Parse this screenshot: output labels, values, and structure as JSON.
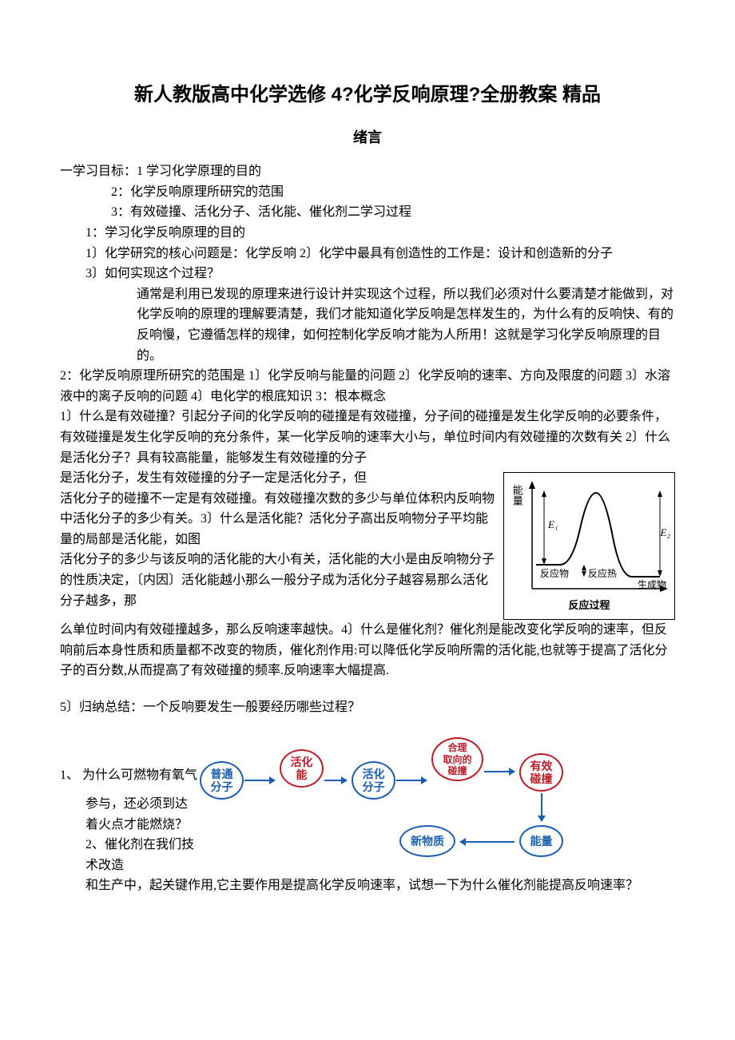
{
  "title": "新人教版高中化学选修 4?化学反响原理?全册教案    精品",
  "subtitle": "绪言",
  "intro": {
    "l1": "一学习目标：1 学习化学原理的目的",
    "l2": "2：化学反响原理所研究的范围",
    "l3": "3：有效碰撞、活化分子、活化能、催化剂二学习过程",
    "l4": "1：学习化学反响原理的目的",
    "l5": "1〕化学研究的核心问题是：化学反响 2〕化学中最具有创造性的工作是：设计和创造新的分子",
    "l6": "3〕如何实现这个过程？",
    "l7": "通常是利用已发现的原理来进行设计并实现这个过程，所以我们必须对什么要清楚才能做到，对化学反响的原理的理解要清楚，我们才能知道化学反响是怎样发生的，为什么有的反响快、有的反响慢，它遵循怎样的规律，如何控制化学反响才能为人所用！这就是学习化学反响原理的目的。"
  },
  "section2": {
    "l1": "2：化学反响原理所研究的范围是 1〕化学反响与能量的问题 2〕化学反响的速率、方向及限度的问题 3〕水溶液中的离子反响的问题 4〕电化学的根底知识 3：根本概念",
    "l2": "1〕什么是有效碰撞？引起分子间的化学反响的碰撞是有效碰撞，分子间的碰撞是发生化学反响的必要条件，有效碰撞是发生化学反响的充分条件，某一化学反响的速率大小与，单位时间内有效碰撞的次数有关 2〕什么是活化分子？具有较高能量，能够发生有效碰撞的分子",
    "l3a": "是活化分子，发生有效碰撞的分子一定是活化分子，但",
    "l3b": "活化分子的碰撞不一定是有效碰撞。有效碰撞次数的多少与单位体积内反响物中活化分子的多少有关。3〕什么是活化能？活化分子高出反响物分子平均能量的局部是活化能，如图",
    "l3c": "活化分子的多少与该反响的活化能的大小有关，活化能的大小是由反响物分子的性质决定，〔内因〕活化能越小那么一般分子成为活化分子越容易那么活化分子越多，那",
    "l4": "么单位时间内有效碰撞越多，那么反响速率越快。4〕什么是催化剂？催化剂是能改变化学反响的速率，但反响前后本身性质和质量都不改变的物质，催化剂作用:可以降低化学反响所需的活化能,也就等于提高了活化分子的百分数,从而提高了有效碰撞的频率.反响速率大幅提高."
  },
  "section5": "5〕归纳总结：一个反响要发生一般要经历哪些过程？",
  "q1": {
    "l1": "1、 为什么可燃物有氧气",
    "l2": "参与，还必须到达着火点才能燃烧？2、催化剂在我们技术改造",
    "l3": "和生产中，起关键作用,它主要作用是提高化学反响速率，试想一下为什么催化剂能提高反响速率？"
  },
  "energyFig": {
    "ylabel": "能量",
    "e1": "E₁",
    "e2": "E₂",
    "reactant": "反应物",
    "heat": "反应热",
    "product": "生成物",
    "xlabel": "反应过程",
    "colors": {
      "border": "#000000",
      "curve": "#000000",
      "text": "#000000"
    }
  },
  "flow": {
    "b1": {
      "label": "普通\n分子",
      "color": "#1a5fb4"
    },
    "b2": {
      "label": "活化\n能",
      "color": "#c01c28"
    },
    "b3": {
      "label": "活化\n分子",
      "color": "#1a5fb4"
    },
    "b4": {
      "label": "合理\n取向的\n碰撞",
      "color": "#c01c28"
    },
    "b5": {
      "label": "有效\n碰撞",
      "color": "#c01c28"
    },
    "b6": {
      "label": "能量",
      "color": "#1a5fb4"
    },
    "b7": {
      "label": "新物质",
      "color": "#1a5fb4"
    },
    "arrowColor": "#1a5fb4"
  }
}
